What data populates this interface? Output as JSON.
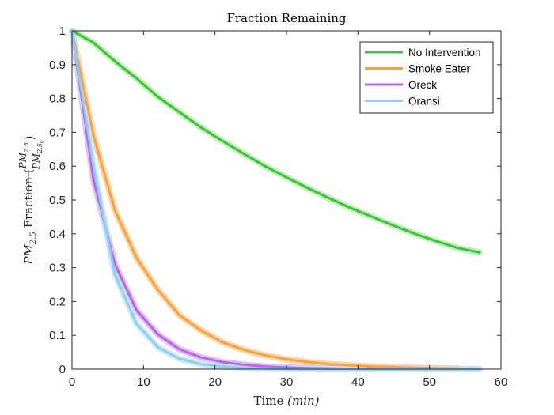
{
  "chart_data": {
    "type": "line",
    "title": "Fraction Remaining",
    "xlabel_main": "Time ",
    "xlabel_unit": "(min)",
    "ylabel_main": "PM",
    "ylabel_sub": "2.5",
    "ylabel_fraction_word": " Fraction (",
    "ylabel_num": "PM",
    "ylabel_num_sub": "2.5",
    "ylabel_den": "PM",
    "ylabel_den_sub": "2.5",
    "ylabel_den_sub2": "0",
    "ylabel_close": ")",
    "xlim": [
      0,
      60
    ],
    "ylim": [
      0,
      1
    ],
    "xticks": [
      0,
      10,
      20,
      30,
      40,
      50,
      60
    ],
    "yticks": [
      0,
      0.1,
      0.2,
      0.3,
      0.4,
      0.5,
      0.6,
      0.7,
      0.8,
      0.9,
      1
    ],
    "ytick_labels": [
      "0",
      "0.1",
      "0.2",
      "0.3",
      "0.4",
      "0.5",
      "0.6",
      "0.7",
      "0.8",
      "0.9",
      "1"
    ],
    "xtick_labels": [
      "0",
      "10",
      "20",
      "30",
      "40",
      "50",
      "60"
    ],
    "grid": false,
    "legend_position": "top-right",
    "series": [
      {
        "name": "No Intervention",
        "color": "#3ec13e",
        "band_color": "#b6f0a8",
        "x": [
          0,
          3,
          6,
          9,
          12,
          15,
          18,
          21,
          24,
          27,
          30,
          33,
          36,
          39,
          42,
          45,
          48,
          51,
          54,
          57
        ],
        "y": [
          1,
          0.965,
          0.91,
          0.86,
          0.805,
          0.76,
          0.715,
          0.675,
          0.637,
          0.6,
          0.567,
          0.535,
          0.505,
          0.476,
          0.45,
          0.424,
          0.4,
          0.378,
          0.358,
          0.345
        ]
      },
      {
        "name": "Smoke Eater",
        "color": "#f7a240",
        "band_color": "#f9cf9a",
        "x": [
          0,
          3,
          6,
          9,
          12,
          15,
          18,
          21,
          24,
          27,
          30,
          33,
          36,
          39,
          42,
          45,
          48,
          51,
          54
        ],
        "y": [
          1,
          0.69,
          0.47,
          0.33,
          0.235,
          0.16,
          0.115,
          0.08,
          0.057,
          0.041,
          0.029,
          0.021,
          0.015,
          0.011,
          0.008,
          0.006,
          0.004,
          0.003,
          0.002
        ]
      },
      {
        "name": "Oreck",
        "color": "#b866e8",
        "band_color": "#dcb4f4",
        "x": [
          0,
          3,
          6,
          9,
          12,
          15,
          18,
          21,
          24,
          27,
          30,
          33,
          36,
          39,
          42,
          45,
          48,
          51,
          54,
          57
        ],
        "y": [
          1,
          0.56,
          0.31,
          0.175,
          0.103,
          0.059,
          0.035,
          0.021,
          0.013,
          0.008,
          0.005,
          0.003,
          0.002,
          0.001,
          0.001,
          0.001,
          0.0005,
          0.0003,
          0.0002,
          0.0001
        ]
      },
      {
        "name": "Oransi",
        "color": "#8fcdf3",
        "band_color": "#c6e6f8",
        "x": [
          0,
          3,
          6,
          9,
          12,
          15,
          18,
          21,
          24,
          27,
          30,
          33,
          36,
          39,
          42,
          45,
          48,
          51,
          54,
          57
        ],
        "y": [
          1,
          0.6,
          0.28,
          0.135,
          0.065,
          0.031,
          0.015,
          0.008,
          0.004,
          0.002,
          0.001,
          0.0006,
          0.0003,
          0.0002,
          0.0001,
          0.0001,
          0,
          0,
          0,
          0
        ]
      }
    ]
  }
}
